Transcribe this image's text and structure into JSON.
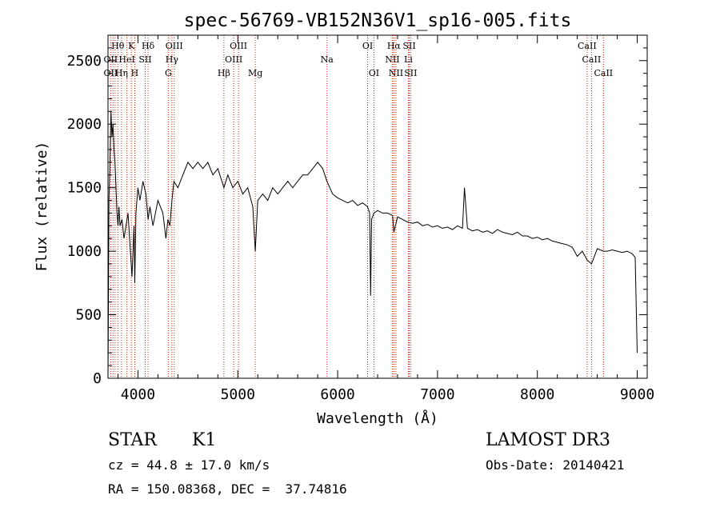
{
  "chart_data": {
    "type": "line",
    "title": "spec-56769-VB152N36V1_sp16-005.fits",
    "xlabel": "Wavelength (Å)",
    "ylabel": "Flux (relative)",
    "xlim": [
      3700,
      9100
    ],
    "ylim": [
      0,
      2700
    ],
    "xticks": [
      4000,
      5000,
      6000,
      7000,
      8000,
      9000
    ],
    "yticks": [
      0,
      500,
      1000,
      1500,
      2000,
      2500
    ],
    "grid": false,
    "series": [
      {
        "x": [
          3700,
          3710,
          3720,
          3730,
          3740,
          3750,
          3760,
          3770,
          3780,
          3790,
          3800,
          3810,
          3820,
          3840,
          3860,
          3880,
          3900,
          3920,
          3940,
          3960,
          3968,
          3980,
          4000,
          4020,
          4050,
          4080,
          4101,
          4120,
          4150,
          4200,
          4250,
          4280,
          4300,
          4320,
          4340,
          4360,
          4400,
          4450,
          4500,
          4550,
          4600,
          4650,
          4700,
          4750,
          4800,
          4861,
          4900,
          4950,
          5000,
          5050,
          5100,
          5150,
          5175,
          5200,
          5250,
          5300,
          5350,
          5400,
          5450,
          5500,
          5550,
          5600,
          5650,
          5700,
          5750,
          5800,
          5850,
          5893,
          5950,
          6000,
          6050,
          6100,
          6150,
          6200,
          6250,
          6300,
          6320,
          6330,
          6340,
          6363,
          6400,
          6450,
          6500,
          6550,
          6563,
          6600,
          6650,
          6700,
          6750,
          6800,
          6850,
          6900,
          6950,
          7000,
          7050,
          7100,
          7150,
          7200,
          7250,
          7270,
          7300,
          7350,
          7400,
          7450,
          7500,
          7550,
          7600,
          7650,
          7700,
          7750,
          7800,
          7850,
          7900,
          7950,
          8000,
          8050,
          8100,
          8150,
          8200,
          8250,
          8300,
          8350,
          8400,
          8450,
          8498,
          8542,
          8600,
          8662,
          8700,
          8750,
          8800,
          8850,
          8900,
          8950,
          8980,
          9000
        ],
        "y": [
          0,
          1400,
          1700,
          2100,
          1900,
          2000,
          1800,
          1700,
          1500,
          1300,
          1200,
          1350,
          1200,
          1250,
          1100,
          1200,
          1300,
          1050,
          800,
          1200,
          750,
          1300,
          1500,
          1400,
          1550,
          1450,
          1250,
          1350,
          1200,
          1400,
          1300,
          1100,
          1250,
          1200,
          1400,
          1550,
          1500,
          1600,
          1700,
          1650,
          1700,
          1650,
          1700,
          1600,
          1650,
          1500,
          1600,
          1500,
          1550,
          1450,
          1500,
          1350,
          1000,
          1400,
          1450,
          1400,
          1500,
          1450,
          1500,
          1550,
          1500,
          1550,
          1600,
          1600,
          1650,
          1700,
          1650,
          1550,
          1450,
          1420,
          1400,
          1380,
          1400,
          1360,
          1380,
          1350,
          1300,
          650,
          1250,
          1300,
          1320,
          1300,
          1300,
          1280,
          1150,
          1270,
          1250,
          1230,
          1220,
          1230,
          1200,
          1210,
          1190,
          1200,
          1180,
          1190,
          1170,
          1200,
          1180,
          1500,
          1180,
          1160,
          1170,
          1150,
          1160,
          1140,
          1170,
          1150,
          1140,
          1130,
          1150,
          1120,
          1120,
          1100,
          1110,
          1090,
          1100,
          1080,
          1070,
          1060,
          1050,
          1030,
          960,
          1000,
          930,
          900,
          1020,
          1000,
          1000,
          1010,
          1000,
          990,
          1000,
          980,
          950,
          200
        ]
      }
    ],
    "line_labels": [
      {
        "label": "Hθ",
        "x": 3798,
        "row": 1
      },
      {
        "label": "K",
        "x": 3934,
        "row": 1
      },
      {
        "label": "Hδ",
        "x": 4101,
        "row": 1
      },
      {
        "label": "OIII",
        "x": 4363,
        "row": 1
      },
      {
        "label": "OIII",
        "x": 5007,
        "row": 1
      },
      {
        "label": "OI",
        "x": 6300,
        "row": 1
      },
      {
        "label": "Hα",
        "x": 6563,
        "row": 1
      },
      {
        "label": "SII",
        "x": 6717,
        "row": 1
      },
      {
        "label": "CaII",
        "x": 8498,
        "row": 1
      },
      {
        "label": "OII",
        "x": 3727,
        "row": 2
      },
      {
        "label": "HeI",
        "x": 3889,
        "row": 2
      },
      {
        "label": "SII",
        "x": 4072,
        "row": 2
      },
      {
        "label": "Hγ",
        "x": 4340,
        "row": 2
      },
      {
        "label": "OIII",
        "x": 4959,
        "row": 2
      },
      {
        "label": "Na",
        "x": 5893,
        "row": 2
      },
      {
        "label": "NII",
        "x": 6548,
        "row": 2
      },
      {
        "label": "Li",
        "x": 6708,
        "row": 2
      },
      {
        "label": "CaII",
        "x": 8542,
        "row": 2
      },
      {
        "label": "OII",
        "x": 3727,
        "row": 3
      },
      {
        "label": "Hη",
        "x": 3835,
        "row": 3
      },
      {
        "label": "H",
        "x": 3968,
        "row": 3
      },
      {
        "label": "G",
        "x": 4304,
        "row": 3
      },
      {
        "label": "Hβ",
        "x": 4861,
        "row": 3
      },
      {
        "label": "Mg",
        "x": 5175,
        "row": 3
      },
      {
        "label": "OI",
        "x": 6363,
        "row": 3
      },
      {
        "label": "NII",
        "x": 6584,
        "row": 3
      },
      {
        "label": "SII",
        "x": 6731,
        "row": 3
      },
      {
        "label": "CaII",
        "x": 8662,
        "row": 3
      }
    ],
    "marker_lines_x": [
      3727,
      3750,
      3771,
      3798,
      3835,
      3889,
      3934,
      3968,
      4072,
      4101,
      4304,
      4340,
      4363,
      4861,
      4959,
      5007,
      5175,
      5893,
      6300,
      6363,
      6548,
      6563,
      6584,
      6708,
      6717,
      6731,
      8498,
      8542,
      8662
    ]
  },
  "info": {
    "object_class": "STAR",
    "subclass": "K1",
    "survey": "LAMOST DR3",
    "redshift": "cz = 44.8 ± 17.0 km/s",
    "obs_date": "Obs-Date: 20140421",
    "coords": "RA = 150.08368, DEC =  37.74816"
  },
  "colors": {
    "spectrum": "#000000",
    "marker_lines": "#cc2200",
    "axes": "#000000"
  }
}
